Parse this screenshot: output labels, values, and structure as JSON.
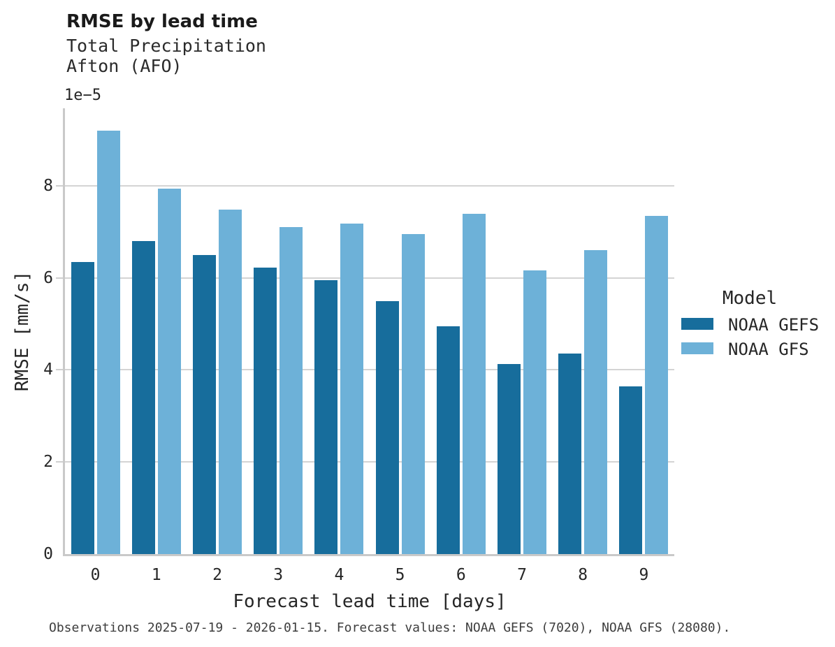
{
  "header": {
    "title": "RMSE by lead time",
    "subtitle_line1": "Total Precipitation",
    "subtitle_line2": "Afton (AFO)"
  },
  "axes": {
    "x": {
      "label": "Forecast lead time [days]"
    },
    "y": {
      "label": "RMSE [mm/s]",
      "ticks": [
        0,
        2,
        4,
        6,
        8
      ],
      "offset_label": "1e−5"
    }
  },
  "legend": {
    "title": "Model",
    "items": [
      {
        "label": "NOAA GEFS",
        "color": "#176d9c"
      },
      {
        "label": "NOAA GFS",
        "color": "#6db1d8"
      }
    ]
  },
  "footer": {
    "text": "Observations 2025-07-19 - 2026-01-15. Forecast values: NOAA GEFS (7020), NOAA GFS (28080)."
  },
  "chart_data": {
    "type": "bar",
    "title": "RMSE by lead time",
    "subtitle": "Total Precipitation / Afton (AFO)",
    "categories": [
      0,
      1,
      2,
      3,
      4,
      5,
      6,
      7,
      8,
      9
    ],
    "series": [
      {
        "name": "NOAA GEFS",
        "color": "#176d9c",
        "values": [
          6.35,
          6.8,
          6.5,
          6.23,
          5.95,
          5.5,
          4.95,
          4.13,
          4.36,
          3.65
        ]
      },
      {
        "name": "NOAA GFS",
        "color": "#6db1d8",
        "values": [
          9.2,
          7.94,
          7.49,
          7.1,
          7.18,
          6.96,
          7.39,
          6.17,
          6.6,
          7.34
        ]
      }
    ],
    "value_unit": "1e-5 mm/s",
    "xlabel": "Forecast lead time [days]",
    "ylabel": "RMSE [mm/s]",
    "ylim": [
      0,
      9.685
    ],
    "yticks": [
      0,
      2,
      4,
      6,
      8
    ],
    "grid": true,
    "legend_title": "Model",
    "legend_position": "right"
  }
}
